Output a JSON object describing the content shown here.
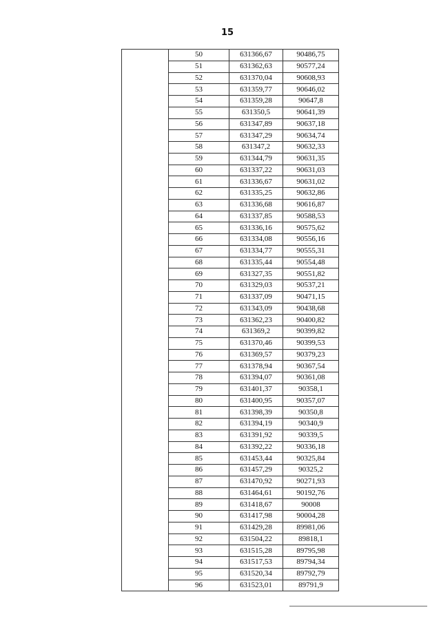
{
  "page_number": "15",
  "rows": [
    [
      "50",
      "631366,67",
      "90486,75"
    ],
    [
      "51",
      "631362,63",
      "90577,24"
    ],
    [
      "52",
      "631370,04",
      "90608,93"
    ],
    [
      "53",
      "631359,77",
      "90646,02"
    ],
    [
      "54",
      "631359,28",
      "90647,8"
    ],
    [
      "55",
      "631350,5",
      "90641,39"
    ],
    [
      "56",
      "631347,89",
      "90637,18"
    ],
    [
      "57",
      "631347,29",
      "90634,74"
    ],
    [
      "58",
      "631347,2",
      "90632,33"
    ],
    [
      "59",
      "631344,79",
      "90631,35"
    ],
    [
      "60",
      "631337,22",
      "90631,03"
    ],
    [
      "61",
      "631336,67",
      "90631,02"
    ],
    [
      "62",
      "631335,25",
      "90632,86"
    ],
    [
      "63",
      "631336,68",
      "90616,87"
    ],
    [
      "64",
      "631337,85",
      "90588,53"
    ],
    [
      "65",
      "631336,16",
      "90575,62"
    ],
    [
      "66",
      "631334,08",
      "90556,16"
    ],
    [
      "67",
      "631334,77",
      "90555,31"
    ],
    [
      "68",
      "631335,44",
      "90554,48"
    ],
    [
      "69",
      "631327,35",
      "90551,82"
    ],
    [
      "70",
      "631329,03",
      "90537,21"
    ],
    [
      "71",
      "631337,09",
      "90471,15"
    ],
    [
      "72",
      "631343,09",
      "90438,68"
    ],
    [
      "73",
      "631362,23",
      "90400,82"
    ],
    [
      "74",
      "631369,2",
      "90399,82"
    ],
    [
      "75",
      "631370,46",
      "90399,53"
    ],
    [
      "76",
      "631369,57",
      "90379,23"
    ],
    [
      "77",
      "631378,94",
      "90367,54"
    ],
    [
      "78",
      "631394,07",
      "90361,08"
    ],
    [
      "79",
      "631401,37",
      "90358,1"
    ],
    [
      "80",
      "631400,95",
      "90357,07"
    ],
    [
      "81",
      "631398,39",
      "90350,8"
    ],
    [
      "82",
      "631394,19",
      "90340,9"
    ],
    [
      "83",
      "631391,92",
      "90339,5"
    ],
    [
      "84",
      "631392,22",
      "90336,18"
    ],
    [
      "85",
      "631453,44",
      "90325,84"
    ],
    [
      "86",
      "631457,29",
      "90325,2"
    ],
    [
      "87",
      "631470,92",
      "90271,93"
    ],
    [
      "88",
      "631464,61",
      "90192,76"
    ],
    [
      "89",
      "631418,67",
      "90008"
    ],
    [
      "90",
      "631417,98",
      "90004,28"
    ],
    [
      "91",
      "631429,28",
      "89981,06"
    ],
    [
      "92",
      "631504,22",
      "89818,1"
    ],
    [
      "93",
      "631515,28",
      "89795,98"
    ],
    [
      "94",
      "631517,53",
      "89794,34"
    ],
    [
      "95",
      "631520,34",
      "89792,79"
    ],
    [
      "96",
      "631523,01",
      "89791,9"
    ]
  ]
}
